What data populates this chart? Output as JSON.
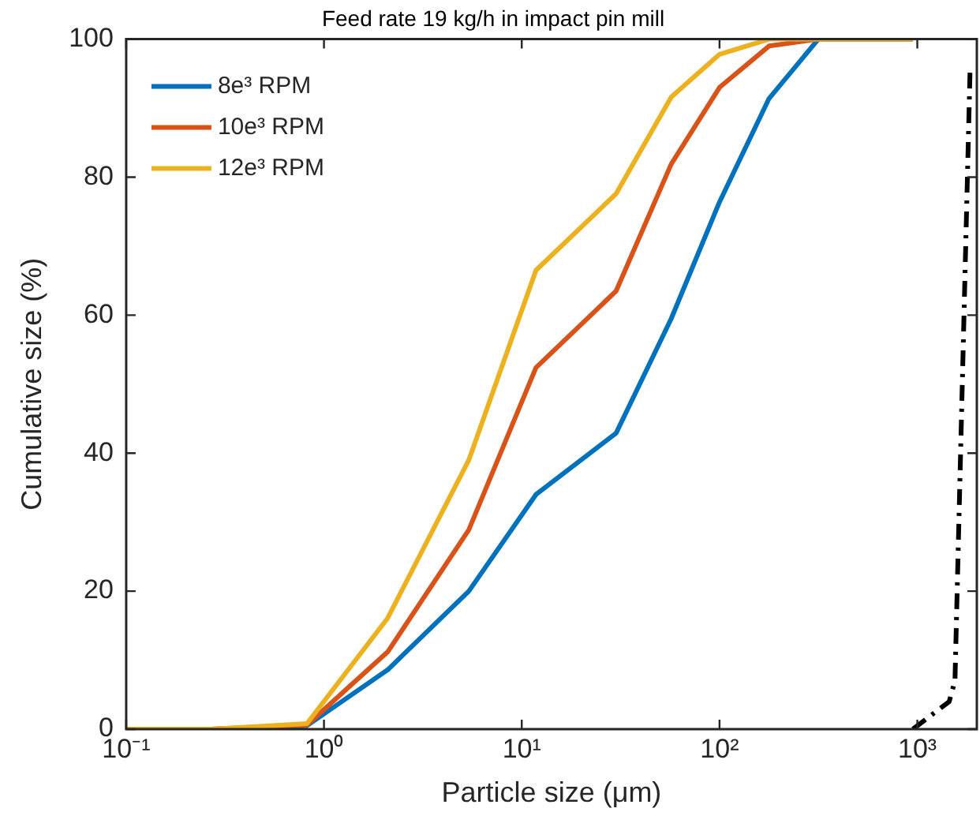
{
  "chart_data": {
    "type": "line",
    "title": "Feed rate 19 kg/h in impact pin mill",
    "xlabel": "Particle size (μm)",
    "ylabel": "Cumulative size (%)",
    "log": "x",
    "xlim": [
      0.1,
      2000
    ],
    "ylim": [
      0,
      100
    ],
    "xticks": [
      {
        "value": 0.1,
        "label": "10⁻¹"
      },
      {
        "value": 1,
        "label": "10⁰"
      },
      {
        "value": 10,
        "label": "10¹"
      },
      {
        "value": 100,
        "label": "10²"
      },
      {
        "value": 1000,
        "label": "10³"
      }
    ],
    "yticks": [
      0,
      20,
      40,
      60,
      80,
      100
    ],
    "grid": false,
    "legend": "top left",
    "marker": "none",
    "x": [
      0.1,
      0.27,
      0.82,
      2.1,
      5.4,
      11.8,
      30,
      57,
      100,
      178,
      316,
      950
    ],
    "series": [
      {
        "name": "8e³ RPM",
        "color": "#0072bd",
        "values": [
          0,
          0,
          0.5,
          8.6,
          20.0,
          34.0,
          42.9,
          59.5,
          76.4,
          91.4,
          100,
          100
        ]
      },
      {
        "name": "10e³ RPM",
        "color": "#d95319",
        "values": [
          0,
          0,
          0.6,
          11.2,
          28.9,
          52.4,
          63.5,
          81.9,
          93.0,
          99.0,
          100,
          100
        ]
      },
      {
        "name": "12e³ RPM",
        "color": "#edb120",
        "values": [
          0,
          0,
          0.8,
          16.1,
          39.0,
          66.5,
          77.6,
          91.6,
          97.8,
          100,
          100,
          100
        ]
      },
      {
        "color": "#000000",
        "line_style": "dashed",
        "x": [
          950,
          1450,
          1550,
          1850
        ],
        "values": [
          0,
          4,
          7,
          96
        ]
      }
    ]
  }
}
